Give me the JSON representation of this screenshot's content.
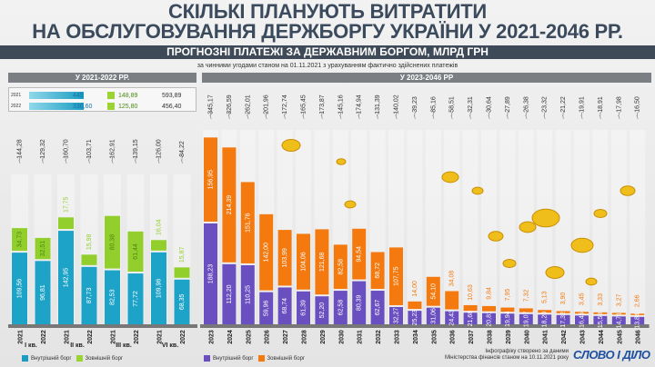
{
  "title_line1": "СКІЛЬКІ ПЛАНУЮТЬ ВИТРАТИТИ",
  "title_line2": "НА ОБСЛУГОВУВАННЯ ДЕРЖБОРГУ УКРАЇНИ У 2021-2046 РР.",
  "band": "ПРОГНОЗНІ ПЛАТЕЖІ ЗА ДЕРЖАВНИМ БОРГОМ, МЛРД ГРН",
  "subtitle": "за чинними угодами станом на 01.11.2021 з урахуванням фактично здійснених платежів",
  "section_left": "У 2021-2022 РР.",
  "section_right": "У 2023-2046 РР",
  "summary": [
    {
      "year": "2021",
      "internal": "445",
      "external": "148,89",
      "total": "593,89"
    },
    {
      "year": "2022",
      "internal": "330,60",
      "external": "125,80",
      "total": "456,40"
    }
  ],
  "legend": {
    "internal": "Внутрішній борг",
    "external": "Зовнішній борг"
  },
  "credit_line1": "Інфографіку створено за даними",
  "credit_line2": "Міністерства фінансів станом на 10.11.2021 року",
  "logo": "СЛОВО І ДІЛО",
  "colors": {
    "internal_left": "#1c9cc2",
    "external_left": "#9bd432",
    "internal_right": "#6a4fc0",
    "external_right": "#f47a10"
  },
  "chart_data": [
    {
      "type": "bar",
      "stacked": true,
      "title": "У 2021-2022 РР.",
      "groups": [
        "I кв.",
        "II кв.",
        "III кв.",
        "VI кв."
      ],
      "categories": [
        "2021",
        "2022",
        "2021",
        "2022",
        "2021",
        "2022",
        "2021",
        "2022"
      ],
      "series": [
        {
          "name": "Внутрішній борг",
          "values": [
            109.56,
            96.81,
            142.95,
            87.73,
            82.53,
            77.72,
            109.96,
            68.35
          ],
          "labels": [
            "109,56",
            "96,81",
            "142,95",
            "87,73",
            "82,53",
            "77,72",
            "109,96",
            "68,35"
          ]
        },
        {
          "name": "Зовнішній борг",
          "values": [
            34.73,
            32.51,
            17.75,
            15.98,
            80.38,
            61.44,
            16.04,
            15.87
          ],
          "labels": [
            "34,73",
            "32,51",
            "17,75",
            "15,98",
            "80,38",
            "61,44",
            "16,04",
            "15,87"
          ]
        }
      ],
      "totals": [
        "144,28",
        "129,32",
        "160,70",
        "103,71",
        "162,91",
        "139,15",
        "126,00",
        "84,22"
      ]
    },
    {
      "type": "bar",
      "stacked": true,
      "title": "У 2023-2046 РР",
      "categories": [
        "2023",
        "2024",
        "2025",
        "2026",
        "2027",
        "2028",
        "2029",
        "2030",
        "2031",
        "2032",
        "2033",
        "2034",
        "2035",
        "2036",
        "2037",
        "2038",
        "2039",
        "2040",
        "2041",
        "2042",
        "2043",
        "2044",
        "2045",
        "2046"
      ],
      "series": [
        {
          "name": "Внутрішній борг",
          "values": [
            188.23,
            112.2,
            110.25,
            59.96,
            68.74,
            61.39,
            52.2,
            62.58,
            80.39,
            62.67,
            32.27,
            25.23,
            31.06,
            24.43,
            21.68,
            20.81,
            19.94,
            19.07,
            18.2,
            17.32,
            16.45,
            15.58,
            14.71,
            13.84
          ],
          "labels": [
            "188,23",
            "112,20",
            "110,25",
            "59,96",
            "68,74",
            "61,39",
            "52,20",
            "62,58",
            "80,39",
            "62,67",
            "32,27",
            "25,23",
            "31,06",
            "24,43",
            "21,68",
            "20,81",
            "19,94",
            "19,07",
            "18,20",
            "17,32",
            "16,45",
            "15,58",
            "14,71",
            "13,84"
          ]
        },
        {
          "name": "Зовнішній борг",
          "values": [
            156.95,
            214.39,
            151.76,
            142.0,
            103.99,
            104.06,
            121.68,
            82.58,
            94.54,
            68.72,
            107.75,
            14.0,
            54.1,
            34.08,
            10.63,
            9.84,
            7.95,
            7.32,
            5.13,
            3.9,
            3.45,
            3.33,
            3.27,
            2.66
          ],
          "labels": [
            "156,95",
            "214,39",
            "151,76",
            "142,00",
            "103,99",
            "104,06",
            "121,68",
            "82,58",
            "94,54",
            "68,72",
            "107,75",
            "14,00",
            "54,10",
            "34,08",
            "10,63",
            "9,84",
            "7,95",
            "7,32",
            "5,13",
            "3,90",
            "3,45",
            "3,33",
            "3,27",
            "2,66"
          ]
        }
      ],
      "totals": [
        "345,17",
        "326,59",
        "262,01",
        "201,96",
        "172,74",
        "165,45",
        "173,87",
        "145,16",
        "174,94",
        "131,39",
        "140,02",
        "39,23",
        "85,16",
        "58,51",
        "32,31",
        "30,64",
        "27,89",
        "26,38",
        "23,32",
        "21,22",
        "19,91",
        "18,91",
        "17,98",
        "16,50"
      ]
    }
  ]
}
